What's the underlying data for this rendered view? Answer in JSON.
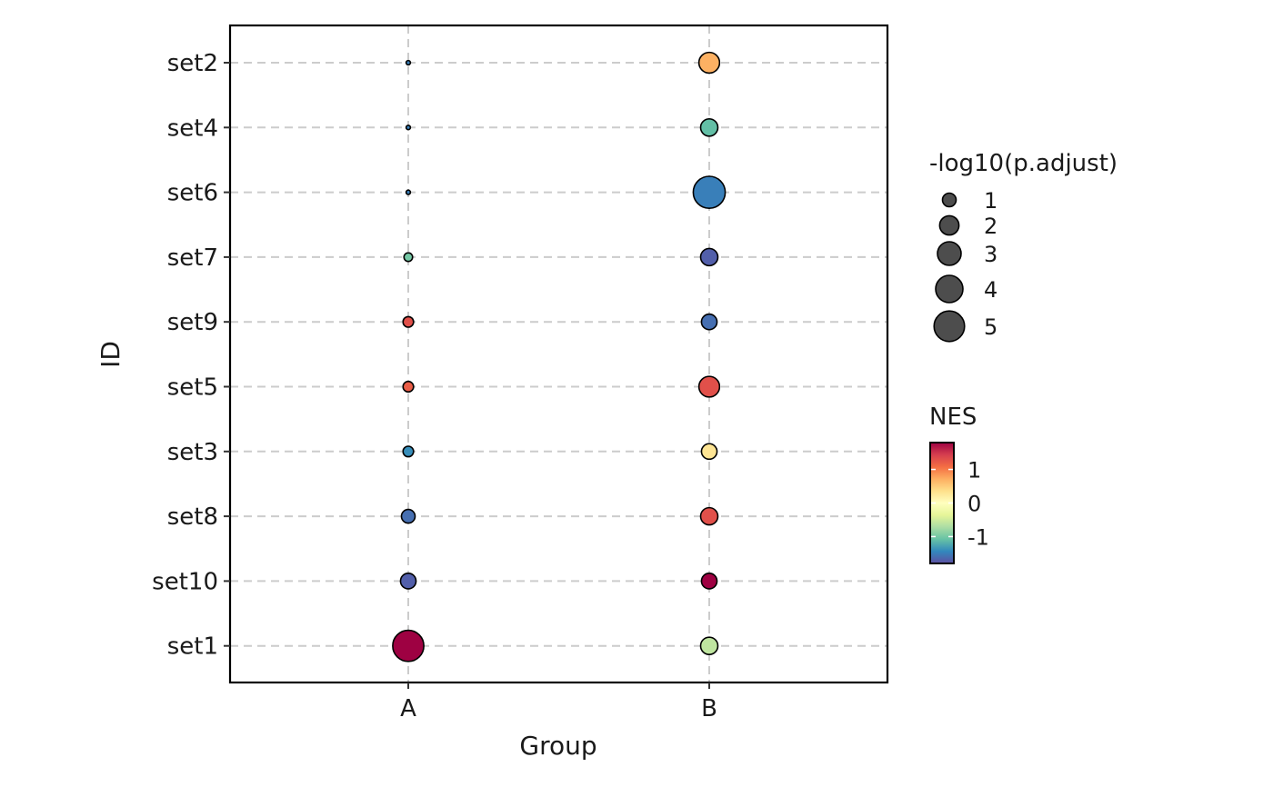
{
  "chart_data": {
    "type": "scatter",
    "xlabel": "Group",
    "ylabel": "ID",
    "x_categories": [
      "A",
      "B"
    ],
    "y_categories": [
      "set2",
      "set4",
      "set6",
      "set7",
      "set9",
      "set5",
      "set3",
      "set8",
      "set10",
      "set1"
    ],
    "grid": true,
    "points": [
      {
        "group": "A",
        "id": "set2",
        "size": 0.1,
        "nes": -1.5
      },
      {
        "group": "A",
        "id": "set4",
        "size": 0.1,
        "nes": -1.5
      },
      {
        "group": "A",
        "id": "set6",
        "size": 0.1,
        "nes": -1.5
      },
      {
        "group": "A",
        "id": "set7",
        "size": 0.4,
        "nes": -1.0
      },
      {
        "group": "A",
        "id": "set9",
        "size": 0.6,
        "nes": 1.3
      },
      {
        "group": "A",
        "id": "set5",
        "size": 0.6,
        "nes": 1.2
      },
      {
        "group": "A",
        "id": "set3",
        "size": 0.6,
        "nes": -1.4
      },
      {
        "group": "A",
        "id": "set8",
        "size": 1.0,
        "nes": -1.6
      },
      {
        "group": "A",
        "id": "set10",
        "size": 1.3,
        "nes": -1.7
      },
      {
        "group": "A",
        "id": "set1",
        "size": 5.2,
        "nes": 1.8
      },
      {
        "group": "B",
        "id": "set2",
        "size": 2.3,
        "nes": 0.7
      },
      {
        "group": "B",
        "id": "set4",
        "size": 1.6,
        "nes": -1.1
      },
      {
        "group": "B",
        "id": "set6",
        "size": 5.5,
        "nes": -1.5
      },
      {
        "group": "B",
        "id": "set7",
        "size": 1.6,
        "nes": -1.7
      },
      {
        "group": "B",
        "id": "set9",
        "size": 1.3,
        "nes": -1.6
      },
      {
        "group": "B",
        "id": "set5",
        "size": 2.3,
        "nes": 1.3
      },
      {
        "group": "B",
        "id": "set3",
        "size": 1.3,
        "nes": 0.3
      },
      {
        "group": "B",
        "id": "set8",
        "size": 1.6,
        "nes": 1.3
      },
      {
        "group": "B",
        "id": "set10",
        "size": 1.3,
        "nes": 1.8
      },
      {
        "group": "B",
        "id": "set1",
        "size": 1.6,
        "nes": -0.6
      }
    ],
    "size_legend": {
      "title": "-log10(p.adjust)",
      "breaks": [
        1,
        2,
        3,
        4,
        5
      ],
      "labels": [
        "1",
        "2",
        "3",
        "4",
        "5"
      ]
    },
    "color_legend": {
      "title": "NES",
      "palette": "Spectral",
      "range": [
        -1.8,
        1.8
      ],
      "breaks": [
        1,
        0,
        -1
      ],
      "labels": [
        "1",
        "0",
        "-1"
      ]
    },
    "colors": {
      "grid": "#cccccc",
      "point_outline": "#000000",
      "size_legend_fill": "#4d4d4d",
      "spectral": [
        "#9E0142",
        "#D53E4F",
        "#F46D43",
        "#FDAE61",
        "#FEE08B",
        "#FFFFBF",
        "#E6F598",
        "#ABDDA4",
        "#66C2A5",
        "#3288BD",
        "#5E4FA2"
      ]
    }
  }
}
